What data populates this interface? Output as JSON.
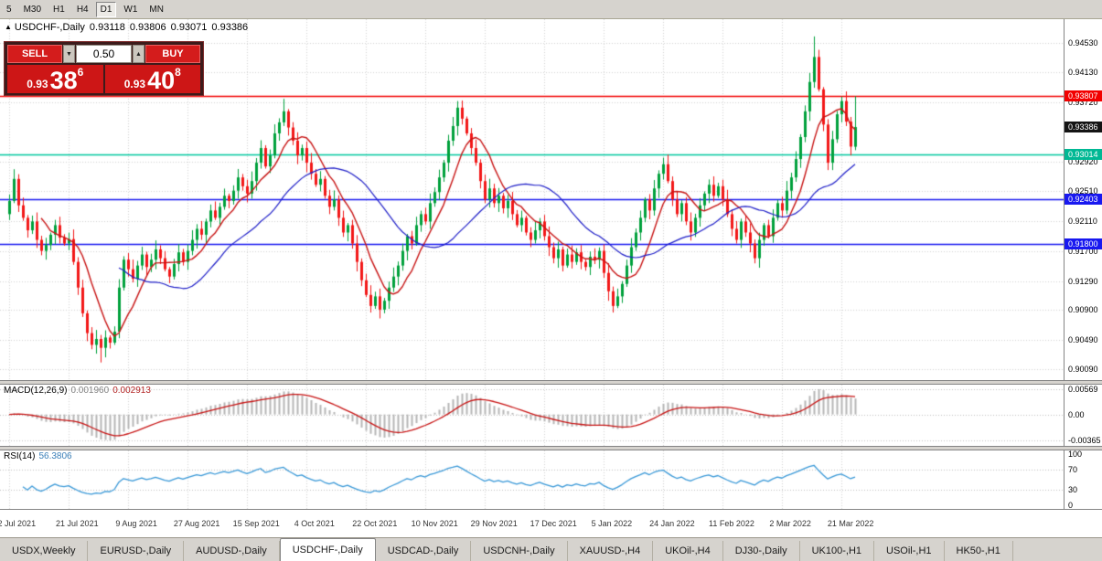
{
  "toolbar": {
    "timeframes": [
      "5",
      "M30",
      "H1",
      "H4",
      "D1",
      "W1",
      "MN"
    ],
    "active": "D1"
  },
  "chart": {
    "symbol_title": "USDCHF-,Daily",
    "ohlc": {
      "open": "0.93118",
      "high": "0.93806",
      "low": "0.93071",
      "close": "0.93386"
    },
    "ylim": [
      0.8999,
      0.9483
    ],
    "colors": {
      "bull": "#00a13c",
      "bear": "#f21818",
      "grid": "#d4d4d4",
      "ma_fast": "#c81414",
      "ma_slow": "#1e1ec8"
    },
    "levels": [
      {
        "name": "resistance-line",
        "price": 0.93807,
        "color": "#f20000",
        "width": 1.4
      },
      {
        "name": "teal-support-line",
        "price": 0.93014,
        "color": "#00c8a0",
        "width": 1.7
      },
      {
        "name": "blue-level-upper",
        "price": 0.92403,
        "color": "#1818f0",
        "width": 1.7
      },
      {
        "name": "blue-level-lower",
        "price": 0.918,
        "color": "#1818f0",
        "width": 1.7
      }
    ],
    "price_scale": {
      "ticks": [
        "0.94530",
        "0.94130",
        "0.93720",
        "0.92920",
        "0.92510",
        "0.92110",
        "0.91700",
        "0.91290",
        "0.90900",
        "0.90490",
        "0.90090"
      ],
      "badges": [
        {
          "label": "0.93807",
          "color": "#f20000",
          "name": "resistance-price-badge"
        },
        {
          "label": "0.93386",
          "color": "#141414",
          "name": "bid-price-badge"
        },
        {
          "label": "0.93014",
          "color": "#00b894",
          "name": "teal-level-price-badge"
        },
        {
          "label": "0.92403",
          "color": "#1818f0",
          "name": "blue-upper-price-badge"
        },
        {
          "label": "0.91800",
          "color": "#1818f0",
          "name": "blue-lower-price-badge"
        }
      ]
    }
  },
  "chart_data": {
    "type": "candlestick",
    "symbol": "USDCHF-",
    "timeframe": "Daily",
    "x_labels": [
      "2 Jul 2021",
      "21 Jul 2021",
      "9 Aug 2021",
      "27 Aug 2021",
      "15 Sep 2021",
      "4 Oct 2021",
      "22 Oct 2021",
      "10 Nov 2021",
      "29 Nov 2021",
      "17 Dec 2021",
      "5 Jan 2022",
      "24 Jan 2022",
      "11 Feb 2022",
      "2 Mar 2022",
      "21 Mar 2022"
    ],
    "label_every_candles": 13,
    "first_open": 0.922,
    "closes": [
      0.9238,
      0.9268,
      0.9232,
      0.9215,
      0.9198,
      0.921,
      0.9185,
      0.917,
      0.9178,
      0.9192,
      0.9205,
      0.9188,
      0.918,
      0.9186,
      0.9155,
      0.912,
      0.9085,
      0.9058,
      0.9042,
      0.905,
      0.9038,
      0.9052,
      0.9045,
      0.906,
      0.912,
      0.9158,
      0.9145,
      0.9132,
      0.915,
      0.9165,
      0.9148,
      0.9158,
      0.9172,
      0.916,
      0.9145,
      0.9135,
      0.9152,
      0.9168,
      0.9155,
      0.917,
      0.9185,
      0.92,
      0.9192,
      0.921,
      0.9225,
      0.9215,
      0.923,
      0.9245,
      0.9238,
      0.9252,
      0.927,
      0.9258,
      0.9248,
      0.9265,
      0.929,
      0.931,
      0.9285,
      0.93,
      0.933,
      0.9345,
      0.936,
      0.9338,
      0.932,
      0.93,
      0.931,
      0.929,
      0.9275,
      0.926,
      0.9268,
      0.9245,
      0.923,
      0.924,
      0.9215,
      0.9195,
      0.9205,
      0.918,
      0.9155,
      0.913,
      0.911,
      0.9095,
      0.9108,
      0.909,
      0.9102,
      0.912,
      0.9135,
      0.915,
      0.917,
      0.919,
      0.918,
      0.9205,
      0.922,
      0.921,
      0.9235,
      0.925,
      0.927,
      0.929,
      0.932,
      0.934,
      0.9365,
      0.935,
      0.933,
      0.931,
      0.929,
      0.9265,
      0.924,
      0.9255,
      0.9235,
      0.9245,
      0.9228,
      0.9238,
      0.922,
      0.9205,
      0.9215,
      0.9195,
      0.9185,
      0.9198,
      0.921,
      0.919,
      0.9175,
      0.916,
      0.9172,
      0.915,
      0.9165,
      0.9155,
      0.9168,
      0.9155,
      0.9148,
      0.9162,
      0.9158,
      0.917,
      0.914,
      0.9115,
      0.9095,
      0.9108,
      0.9125,
      0.915,
      0.9175,
      0.9195,
      0.9215,
      0.924,
      0.9225,
      0.9255,
      0.9275,
      0.9288,
      0.9265,
      0.924,
      0.922,
      0.9235,
      0.921,
      0.9195,
      0.9215,
      0.9232,
      0.9248,
      0.926,
      0.9245,
      0.9258,
      0.924,
      0.922,
      0.92,
      0.9185,
      0.921,
      0.9195,
      0.918,
      0.916,
      0.9185,
      0.9205,
      0.919,
      0.9215,
      0.9235,
      0.9225,
      0.9252,
      0.927,
      0.9295,
      0.9325,
      0.936,
      0.94,
      0.9434,
      0.939,
      0.9342,
      0.929,
      0.9322,
      0.9356,
      0.9374,
      0.9346,
      0.9312,
      0.93386
    ],
    "overrides": {
      "20": {
        "l": 0.9018
      },
      "60": {
        "h": 0.9377
      },
      "81": {
        "l": 0.9078
      },
      "98": {
        "h": 0.9374
      },
      "132": {
        "l": 0.9086
      },
      "176": {
        "h": 0.9462
      },
      "179": {
        "l": 0.928
      },
      "182": {
        "h": 0.938
      },
      "185": {
        "o": 0.93118,
        "h": 0.93806,
        "l": 0.93071,
        "c": 0.93386
      }
    },
    "moving_averages": [
      {
        "period": 8,
        "color": "#c81414",
        "width": 1.4
      },
      {
        "period": 25,
        "color": "#1e1ec8",
        "width": 1.2
      }
    ]
  },
  "macd": {
    "title": "MACD(12,26,9)",
    "value_main": "0.001960",
    "value_signal": "0.002913",
    "fast": 12,
    "slow": 26,
    "signal": 9,
    "scale_labels": [
      "0.00569",
      "0.00",
      "-0.00365"
    ],
    "colors": {
      "hist": "#b6b6b6",
      "signal": "#c81414"
    }
  },
  "rsi": {
    "title": "RSI(14)",
    "value": "56.3806",
    "period": 14,
    "levels": [
      70,
      30
    ],
    "scale_labels": [
      "100",
      "70",
      "30",
      "0"
    ],
    "color": "#3a99d8"
  },
  "trade_panel": {
    "sell_label": "SELL",
    "buy_label": "BUY",
    "volume": "0.50",
    "bid": {
      "prefix": "0.93",
      "big": "38",
      "sup": "6"
    },
    "ask": {
      "prefix": "0.93",
      "big": "40",
      "sup": "8"
    }
  },
  "tabs": {
    "items": [
      "USDX,Weekly",
      "EURUSD-,Daily",
      "AUDUSD-,Daily",
      "USDCHF-,Daily",
      "USDCAD-,Daily",
      "USDCNH-,Daily",
      "XAUUSD-,H4",
      "UKOil-,H4",
      "DJ30-,Daily",
      "UK100-,H1",
      "USOil-,H1",
      "HK50-,H1"
    ],
    "active": "USDCHF-,Daily"
  }
}
